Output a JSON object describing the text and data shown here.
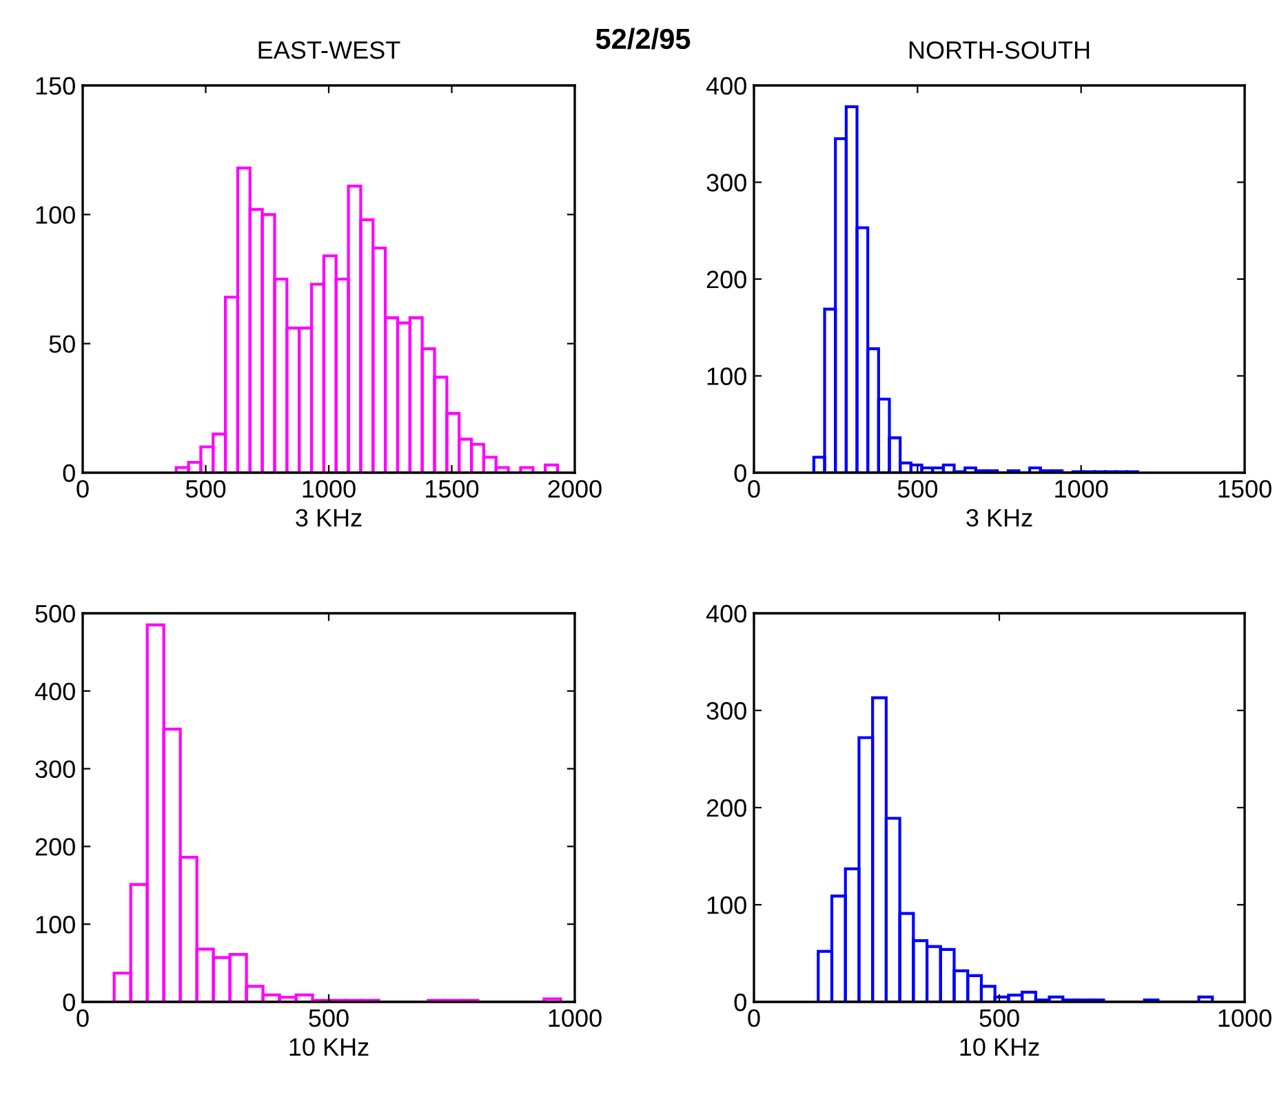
{
  "chart_data": [
    {
      "type": "histogram",
      "title": "EAST-WEST",
      "xlabel": "3 KHz",
      "color": "#ff00ff",
      "annotations": [
        "52/2/95"
      ],
      "bins": [
        380,
        430,
        480,
        530,
        580,
        630,
        680,
        730,
        780,
        830,
        880,
        930,
        980,
        1030,
        1080,
        1130,
        1180,
        1230,
        1280,
        1330,
        1380,
        1430,
        1480,
        1530,
        1580,
        1630,
        1680,
        1730,
        1780,
        1830,
        1880,
        1930
      ],
      "values": [
        2,
        4,
        10,
        15,
        68,
        118,
        102,
        100,
        75,
        56,
        56,
        73,
        84,
        75,
        111,
        98,
        87,
        60,
        58,
        60,
        48,
        37,
        23,
        13,
        11,
        6,
        2,
        0,
        2,
        0,
        3
      ],
      "xlim": [
        0,
        2000
      ],
      "xticks": [
        0,
        500,
        1000,
        1500,
        2000
      ],
      "ylim": [
        0,
        150
      ],
      "yticks": [
        0,
        50,
        100,
        150
      ],
      "grid": false
    },
    {
      "type": "histogram",
      "title": "NORTH-SOUTH",
      "xlabel": "3 KHz",
      "color": "#0000ff",
      "bins": [
        183,
        216,
        249,
        282,
        315,
        348,
        381,
        414,
        447,
        480,
        513,
        546,
        579,
        612,
        645,
        678,
        711,
        744,
        777,
        810,
        843,
        876,
        909,
        942,
        975,
        1008,
        1041,
        1074,
        1107,
        1140,
        1173
      ],
      "values": [
        16,
        169,
        345,
        378,
        253,
        128,
        76,
        36,
        10,
        8,
        5,
        5,
        8,
        1,
        5,
        2,
        2,
        0,
        2,
        0,
        5,
        2,
        2,
        0,
        1,
        1,
        1,
        1,
        1,
        1
      ],
      "xlim": [
        0,
        1500
      ],
      "xticks": [
        0,
        500,
        1000,
        1500
      ],
      "ylim": [
        0,
        400
      ],
      "yticks": [
        0,
        100,
        200,
        300,
        400
      ],
      "grid": false
    },
    {
      "type": "histogram",
      "xlabel": "10 KHz",
      "color": "#ff00ff",
      "bins": [
        64,
        97.6,
        131.2,
        164.8,
        198.4,
        232,
        265.6,
        299.2,
        332.8,
        366.4,
        400,
        433.6,
        467.2,
        500.8,
        534.4,
        568,
        601.6,
        635.2,
        668.8,
        702.4,
        736,
        769.6,
        803.2,
        836.8,
        870.4,
        904,
        937.6,
        971.2
      ],
      "values": [
        37,
        151,
        485,
        351,
        186,
        68,
        57,
        61,
        20,
        9,
        6,
        9,
        2,
        2,
        2,
        2,
        0,
        0,
        0,
        2,
        2,
        2,
        0,
        0,
        0,
        0,
        4
      ],
      "xlim": [
        0,
        1000
      ],
      "xticks": [
        0,
        500,
        1000
      ],
      "ylim": [
        0,
        500
      ],
      "yticks": [
        0,
        100,
        200,
        300,
        400,
        500
      ],
      "grid": false
    },
    {
      "type": "histogram",
      "xlabel": "10 KHz",
      "color": "#0000ff",
      "bins": [
        131,
        158.7,
        186.4,
        214.1,
        241.8,
        269.5,
        297.2,
        324.9,
        352.6,
        380.3,
        408,
        435.7,
        463.4,
        491.1,
        518.8,
        546.5,
        574.2,
        601.9,
        629.6,
        657.3,
        685,
        712.7,
        740.4,
        768.1,
        795.8,
        823.5,
        851.2,
        878.9,
        906.6,
        934.3
      ],
      "values": [
        52,
        109,
        137,
        272,
        313,
        189,
        91,
        63,
        57,
        54,
        32,
        27,
        16,
        5,
        7,
        10,
        2,
        5,
        2,
        2,
        2,
        0,
        0,
        0,
        2,
        0,
        0,
        0,
        5
      ],
      "xlim": [
        0,
        1000
      ],
      "xticks": [
        0,
        500,
        1000
      ],
      "ylim": [
        0,
        400
      ],
      "yticks": [
        0,
        100,
        200,
        300,
        400
      ],
      "grid": false
    }
  ]
}
